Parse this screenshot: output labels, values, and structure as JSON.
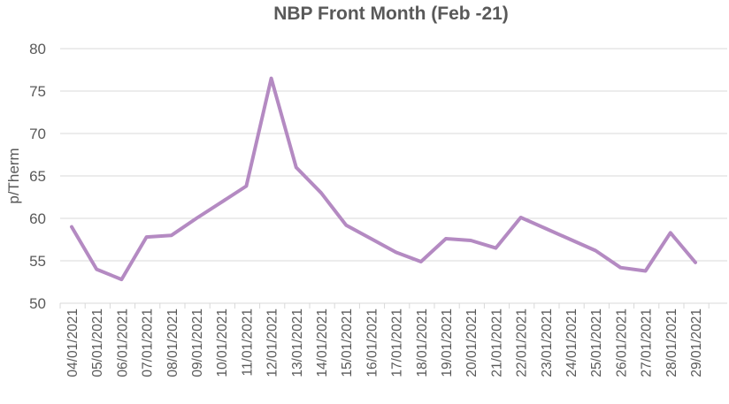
{
  "chart_data": {
    "type": "line",
    "title": "NBP Front Month (Feb -21)",
    "xlabel": "",
    "ylabel": "p/Therm",
    "ylim": [
      50,
      80
    ],
    "yticks": [
      50,
      55,
      60,
      65,
      70,
      75,
      80
    ],
    "grid": true,
    "legend": "none",
    "line_color": "#b48ac2",
    "grid_color": "#d9d9d9",
    "text_color": "#595959",
    "categories": [
      "04/01/2021",
      "05/01/2021",
      "06/01/2021",
      "07/01/2021",
      "08/01/2021",
      "09/01/2021",
      "10/01/2021",
      "11/01/2021",
      "12/01/2021",
      "13/01/2021",
      "14/01/2021",
      "15/01/2021",
      "16/01/2021",
      "17/01/2021",
      "18/01/2021",
      "19/01/2021",
      "20/01/2021",
      "21/01/2021",
      "22/01/2021",
      "23/01/2021",
      "24/01/2021",
      "25/01/2021",
      "26/01/2021",
      "27/01/2021",
      "28/01/2021",
      "29/01/2021"
    ],
    "series": [
      {
        "values": [
          59.0,
          54.0,
          52.8,
          57.8,
          58.0,
          60.0,
          61.9,
          63.8,
          76.5,
          66.0,
          63.0,
          59.2,
          57.6,
          56.0,
          54.9,
          57.6,
          57.4,
          56.5,
          60.1,
          58.8,
          57.5,
          56.2,
          54.2,
          53.8,
          58.3,
          54.8
        ]
      }
    ]
  }
}
